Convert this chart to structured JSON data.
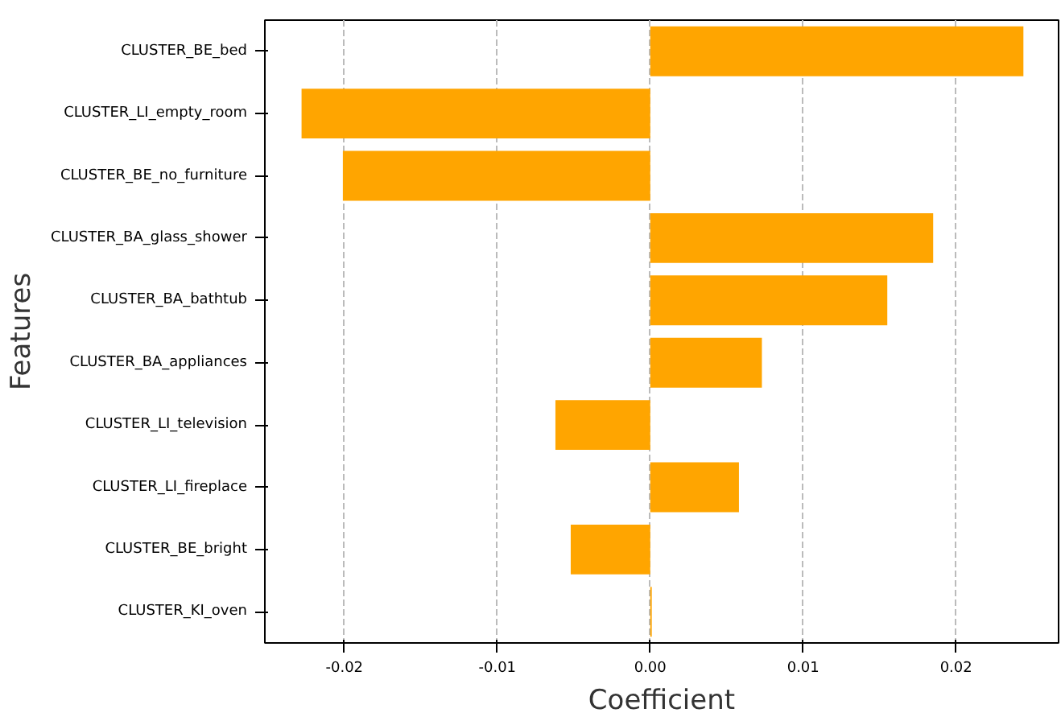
{
  "chart_data": {
    "type": "bar",
    "orientation": "horizontal",
    "xlabel": "Coefficient",
    "ylabel": "Features",
    "categories": [
      "CLUSTER_BE_bed",
      "CLUSTER_LI_empty_room",
      "CLUSTER_BE_no_furniture",
      "CLUSTER_BA_glass_shower",
      "CLUSTER_BA_bathtub",
      "CLUSTER_BA_appliances",
      "CLUSTER_LI_television",
      "CLUSTER_LI_fireplace",
      "CLUSTER_BE_bright",
      "CLUSTER_KI_oven"
    ],
    "values": [
      0.0244,
      -0.0228,
      -0.0201,
      0.0185,
      0.0155,
      0.0073,
      -0.0062,
      0.0058,
      -0.0052,
      0.0001
    ],
    "color": "#ffa500",
    "xlim": [
      -0.0252,
      0.0267
    ],
    "xticks": [
      -0.02,
      -0.01,
      {
        "value": 0,
        "label": "0.00"
      },
      0.01,
      0.02
    ],
    "grid": "x"
  }
}
